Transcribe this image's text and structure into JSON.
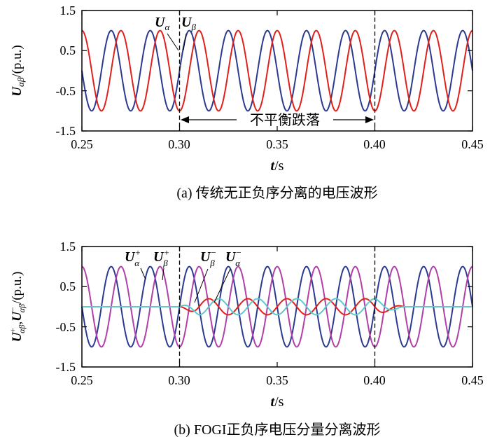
{
  "chart_data": [
    {
      "type": "line",
      "caption": "(a) 传统无正负序分离的电压波形",
      "xlabel_main": "t",
      "xlabel_unit": "/s",
      "ylabel_main": "U",
      "ylabel_sub": "αβ",
      "ylabel_unit": "/(p.u.)",
      "xlim": [
        0.25,
        0.45
      ],
      "ylim": [
        -1.5,
        1.5
      ],
      "xticks": [
        "0.25",
        "0.30",
        "0.35",
        "0.40",
        "0.45"
      ],
      "yticks": [
        "1.5",
        "0.5",
        "-0.5",
        "-1.5"
      ],
      "grid": false,
      "events": [
        0.3,
        0.4
      ],
      "annotation_text": "不平衡跌落",
      "series": [
        {
          "name_main": "U",
          "name_sub": "α",
          "color": "#2b3a8f",
          "kind": "sine",
          "freq": 50,
          "phase_deg": 0,
          "amplitude": [
            [
              0.25,
              1.0
            ],
            [
              0.3,
              1.0
            ],
            [
              0.4,
              1.0
            ],
            [
              0.45,
              1.0
            ]
          ]
        },
        {
          "name_main": "U",
          "name_sub": "β",
          "color": "#e0201b",
          "kind": "sine",
          "freq": 50,
          "phase_deg": -90,
          "amplitude": [
            [
              0.25,
              1.0
            ],
            [
              0.3,
              1.0
            ],
            [
              0.4,
              1.0
            ],
            [
              0.45,
              1.0
            ]
          ]
        }
      ]
    },
    {
      "type": "line",
      "caption": "(b) FOGI正负序电压分量分离波形",
      "xlabel_main": "t",
      "xlabel_unit": "/s",
      "ylabel_main": "U",
      "ylabel_sup1": "+",
      "ylabel_sub1": "αβ",
      "ylabel_sep": ",",
      "ylabel_sup2": "−",
      "ylabel_sub2": "αβ",
      "ylabel_unit": "/(p.u.)",
      "xlim": [
        0.25,
        0.45
      ],
      "ylim": [
        -1.5,
        1.5
      ],
      "xticks": [
        "0.25",
        "0.30",
        "0.35",
        "0.40",
        "0.45"
      ],
      "yticks": [
        "1.5",
        "0.5",
        "-0.5",
        "-1.5"
      ],
      "grid": false,
      "events": [
        0.3,
        0.4
      ],
      "series": [
        {
          "name_main": "U",
          "name_sup": "+",
          "name_sub": "α",
          "color": "#2b3a8f",
          "kind": "sine",
          "freq": 50,
          "phase_deg": 0,
          "amplitude": [
            [
              0.25,
              1.0
            ],
            [
              0.45,
              1.0
            ]
          ]
        },
        {
          "name_main": "U",
          "name_sup": "+",
          "name_sub": "β",
          "color": "#b040a8",
          "kind": "sine",
          "freq": 50,
          "phase_deg": -90,
          "amplitude": [
            [
              0.25,
              1.0
            ],
            [
              0.45,
              1.0
            ]
          ]
        },
        {
          "name_main": "U",
          "name_sup": "−",
          "name_sub": "β",
          "color": "#e0201b",
          "kind": "sine",
          "freq": 50,
          "phase_deg": 180,
          "amplitude": [
            [
              0.25,
              0.0
            ],
            [
              0.3,
              0.0
            ],
            [
              0.31,
              0.2
            ],
            [
              0.4,
              0.2
            ],
            [
              0.415,
              0.0
            ],
            [
              0.45,
              0.0
            ]
          ]
        },
        {
          "name_main": "U",
          "name_sup": "−",
          "name_sub": "α",
          "color": "#5ec8cc",
          "kind": "sine",
          "freq": 50,
          "phase_deg": 90,
          "amplitude": [
            [
              0.25,
              0.0
            ],
            [
              0.3,
              0.0
            ],
            [
              0.31,
              0.2
            ],
            [
              0.4,
              0.2
            ],
            [
              0.415,
              0.0
            ],
            [
              0.45,
              0.0
            ]
          ]
        }
      ]
    }
  ]
}
